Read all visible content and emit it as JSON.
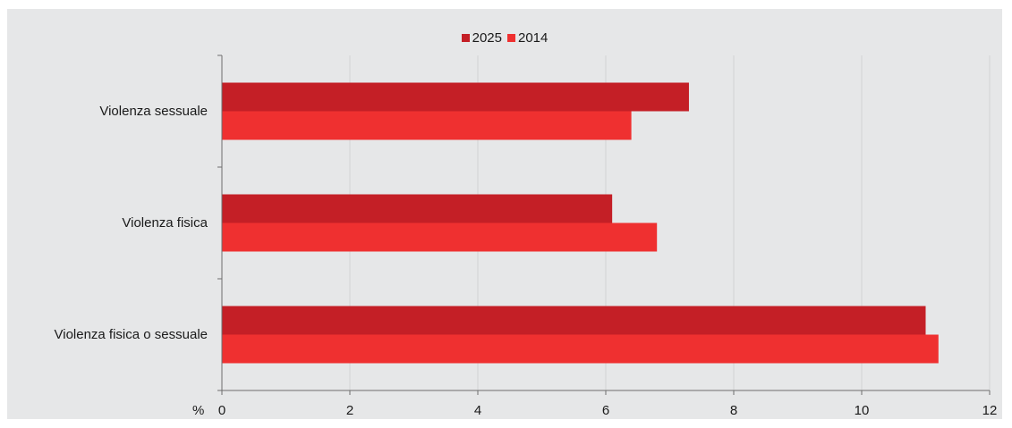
{
  "chart_data": {
    "type": "bar",
    "orientation": "horizontal",
    "title": "",
    "xlabel": "%",
    "ylabel": "",
    "categories": [
      "Violenza sessuale",
      "Violenza fisica",
      "Violenza fisica o sessuale"
    ],
    "series": [
      {
        "name": "2025",
        "color": "#c41f26",
        "values": [
          7.3,
          6.1,
          11.0
        ]
      },
      {
        "name": "2014",
        "color": "#ef3030",
        "values": [
          6.4,
          6.8,
          11.2
        ]
      }
    ],
    "xlim": [
      0,
      12
    ],
    "xticks": [
      "0",
      "2",
      "4",
      "6",
      "8",
      "10",
      "12"
    ],
    "grid": true,
    "legend_position": "top-center"
  },
  "colors": {
    "background": "#e6e7e8",
    "grid": "#d2d3d5",
    "axis": "#6e6e6e"
  }
}
